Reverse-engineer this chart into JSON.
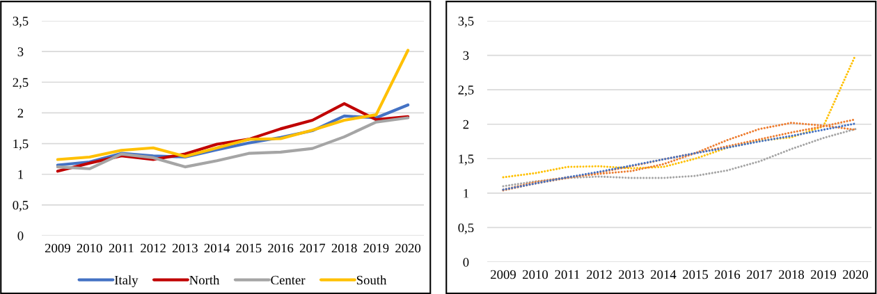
{
  "chart_data": [
    {
      "type": "line",
      "categories": [
        "2009",
        "2010",
        "2011",
        "2012",
        "2013",
        "2014",
        "2015",
        "2016",
        "2017",
        "2018",
        "2019",
        "2020"
      ],
      "series": [
        {
          "name": "Italy",
          "color": "#4472c4",
          "values": [
            1.15,
            1.2,
            1.34,
            1.3,
            1.28,
            1.4,
            1.51,
            1.6,
            1.71,
            1.95,
            1.92,
            2.13
          ]
        },
        {
          "name": "North",
          "color": "#c00000",
          "values": [
            1.05,
            1.18,
            1.3,
            1.24,
            1.33,
            1.49,
            1.57,
            1.74,
            1.88,
            2.15,
            1.89,
            1.94
          ]
        },
        {
          "name": "Center",
          "color": "#a5a5a5",
          "values": [
            1.12,
            1.09,
            1.33,
            1.27,
            1.12,
            1.22,
            1.34,
            1.36,
            1.42,
            1.61,
            1.85,
            1.92
          ]
        },
        {
          "name": "South",
          "color": "#ffc000",
          "values": [
            1.24,
            1.28,
            1.39,
            1.43,
            1.29,
            1.43,
            1.57,
            1.58,
            1.72,
            1.88,
            1.97,
            3.02
          ]
        }
      ],
      "ylim": [
        0,
        3.5
      ],
      "yticks": [
        0,
        {
          "value": 0.5,
          "label": "0,5"
        },
        1,
        {
          "value": 1.5,
          "label": "1,5"
        },
        2,
        {
          "value": 2.5,
          "label": "2,5"
        },
        3,
        {
          "value": 3.5,
          "label": "3,5"
        }
      ],
      "grid": "y",
      "legend": "bottom",
      "line_style": "solid",
      "marker": "none"
    },
    {
      "type": "line",
      "categories": [
        "2009",
        "2010",
        "2011",
        "2012",
        "2013",
        "2014",
        "2015",
        "2016",
        "2017",
        "2018",
        "2019",
        "2020"
      ],
      "series": [
        {
          "color": "#4472c4",
          "values": [
            1.05,
            1.14,
            1.23,
            1.31,
            1.4,
            1.49,
            1.58,
            1.66,
            1.75,
            1.83,
            1.92,
            2.01
          ]
        },
        {
          "color": "#ed7d31",
          "values": [
            1.04,
            1.14,
            1.22,
            1.3,
            1.39,
            1.49,
            1.58,
            1.68,
            1.78,
            1.88,
            1.97,
            2.07
          ]
        },
        {
          "color": "#ed7d31",
          "values": [
            1.05,
            1.16,
            1.23,
            1.28,
            1.32,
            1.42,
            1.58,
            1.77,
            1.93,
            2.02,
            1.98,
            1.92
          ]
        },
        {
          "color": "#a5a5a5",
          "values": [
            1.1,
            1.17,
            1.22,
            1.24,
            1.22,
            1.22,
            1.25,
            1.33,
            1.46,
            1.64,
            1.8,
            1.93
          ]
        },
        {
          "color": "#ffc000",
          "values": [
            1.23,
            1.29,
            1.38,
            1.39,
            1.36,
            1.38,
            1.5,
            1.66,
            1.76,
            1.81,
            1.97,
            3.0
          ]
        }
      ],
      "ylim": [
        0,
        3.5
      ],
      "yticks": [
        0,
        {
          "value": 0.5,
          "label": "0,5"
        },
        1,
        {
          "value": 1.5,
          "label": "1,5"
        },
        2,
        {
          "value": 2.5,
          "label": "2,5"
        },
        3,
        {
          "value": 3.5,
          "label": "3,5"
        }
      ],
      "grid": "y",
      "line_style": "dotted",
      "marker": "none"
    }
  ]
}
